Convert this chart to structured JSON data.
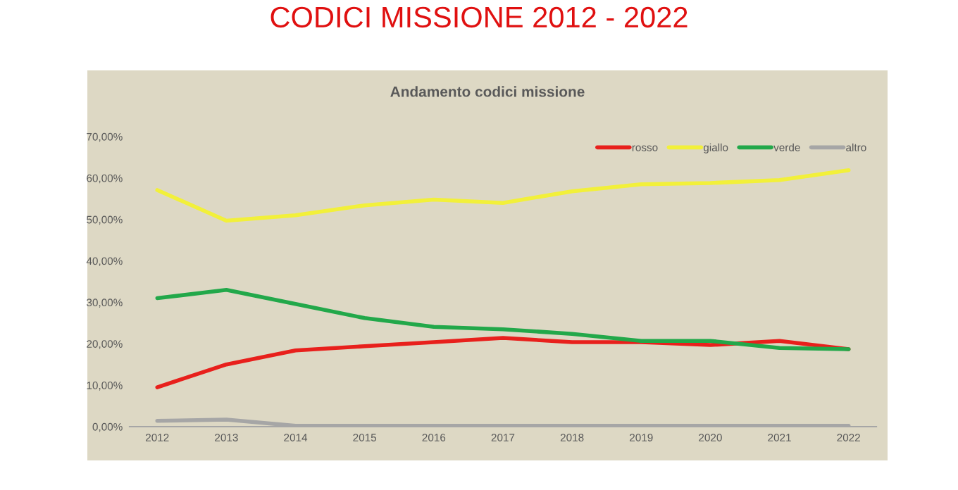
{
  "chart_data": {
    "type": "line",
    "title": "CODICI MISSIONE 2012 - 2022",
    "subtitle": "Andamento codici missione",
    "categories": [
      "2012",
      "2013",
      "2014",
      "2015",
      "2016",
      "2017",
      "2018",
      "2019",
      "2020",
      "2021",
      "2022"
    ],
    "series": [
      {
        "name": "rosso",
        "color": "#e8201c",
        "values": [
          9.5,
          15,
          18.4,
          19.4,
          20.4,
          21.4,
          20.4,
          20.4,
          19.7,
          20.7,
          18.7
        ]
      },
      {
        "name": "giallo",
        "color": "#f2f03a",
        "values": [
          57.1,
          49.7,
          51,
          53.4,
          54.8,
          54,
          56.8,
          58.5,
          58.8,
          59.5,
          61.9
        ]
      },
      {
        "name": "verde",
        "color": "#22a84a",
        "values": [
          31,
          33,
          29.6,
          26.2,
          24.1,
          23.5,
          22.4,
          20.7,
          20.7,
          19,
          18.7
        ]
      },
      {
        "name": "altro",
        "color": "#a6a6a6",
        "values": [
          1.4,
          1.7,
          0.2,
          0.2,
          0.2,
          0.2,
          0.2,
          0.2,
          0.2,
          0.2,
          0.2
        ]
      }
    ],
    "ylim": [
      0,
      70
    ],
    "yticks": [
      {
        "value": 0,
        "label": "0,00%"
      },
      {
        "value": 10,
        "label": "10,00%"
      },
      {
        "value": 20,
        "label": "20,00%"
      },
      {
        "value": 30,
        "label": "30,00%"
      },
      {
        "value": 40,
        "label": "40,00%"
      },
      {
        "value": 50,
        "label": "50,00%"
      },
      {
        "value": 60,
        "label": "60,00%"
      },
      {
        "value": 70,
        "label": "70,00%"
      }
    ],
    "grid": false,
    "legend": "top right",
    "marker": "none",
    "line_style": "solid"
  }
}
